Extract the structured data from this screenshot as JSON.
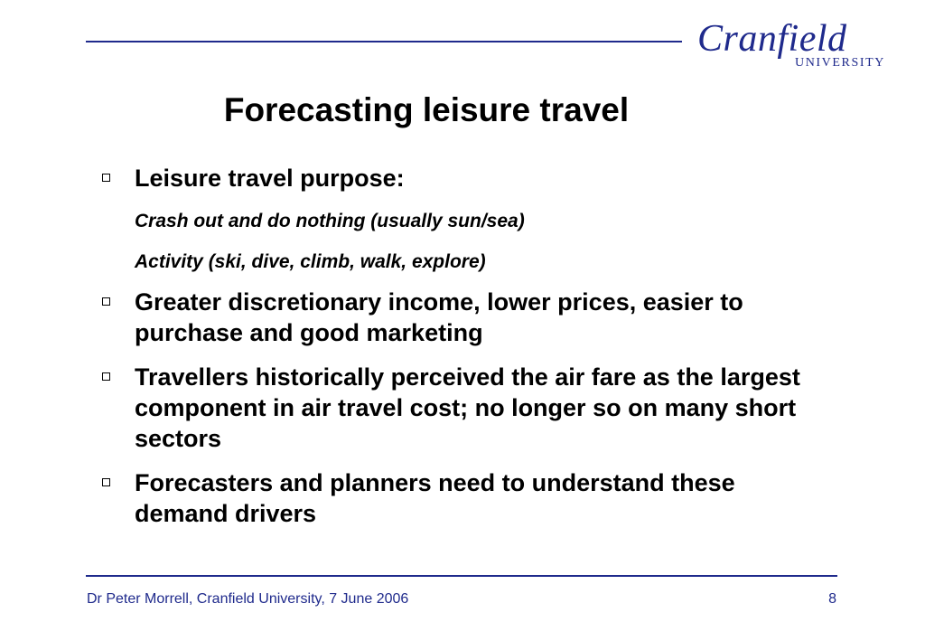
{
  "logo": {
    "word": "Cranfield",
    "sub": "UNIVERSITY"
  },
  "slide": {
    "title": "Forecasting leisure travel",
    "bullets": [
      {
        "text": "Leisure travel purpose:",
        "sub": [
          "Crash out and do nothing (usually sun/sea)",
          "Activity (ski, dive, climb, walk, explore)"
        ]
      },
      {
        "text": "Greater discretionary income, lower prices, easier to purchase and good marketing"
      },
      {
        "text": "Travellers historically perceived the air fare as the largest component in air travel cost; no longer so on many short sectors"
      },
      {
        "text": "Forecasters and planners need to understand these demand drivers"
      }
    ]
  },
  "footer": {
    "text": "Dr Peter Morrell, Cranfield University, 7 June 2006",
    "page": "8"
  },
  "colors": {
    "accent": "#1f2a8c",
    "text": "#000000",
    "background": "#ffffff"
  },
  "icons": {
    "bullet": "hollow-square-bullet-icon"
  }
}
